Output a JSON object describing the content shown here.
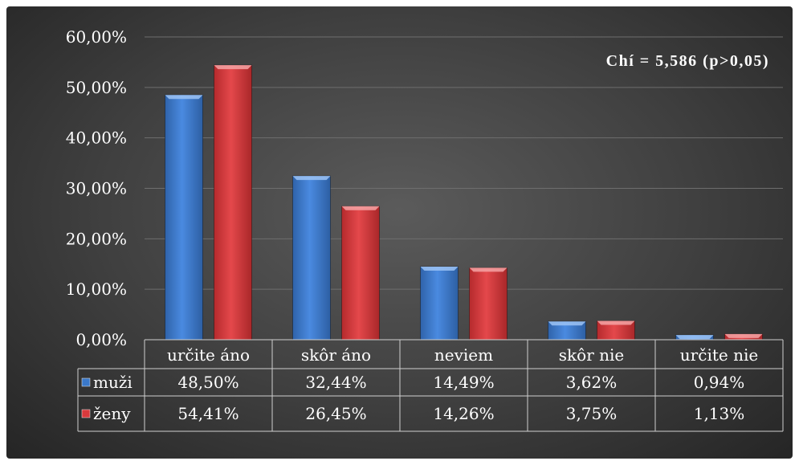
{
  "chart_data": {
    "type": "bar",
    "title": "",
    "xlabel": "",
    "ylabel": "",
    "ylim": [
      0,
      60
    ],
    "y_tick_values": [
      0,
      10,
      20,
      30,
      40,
      50,
      60
    ],
    "y_tick_labels": [
      "0,00%",
      "10,00%",
      "20,00%",
      "30,00%",
      "40,00%",
      "50,00%",
      "60,00%"
    ],
    "categories": [
      "určite áno",
      "skôr áno",
      "neviem",
      "skôr nie",
      "určite nie"
    ],
    "series": [
      {
        "name": "muži",
        "color": "#3a78c9",
        "values": [
          48.5,
          32.44,
          14.49,
          3.62,
          0.94
        ],
        "labels": [
          "48,50%",
          "32,44%",
          "14,49%",
          "3,62%",
          "0,94%"
        ]
      },
      {
        "name": "ženy",
        "color": "#d9393c",
        "values": [
          54.41,
          26.45,
          14.26,
          3.75,
          1.13
        ],
        "labels": [
          "54,41%",
          "26,45%",
          "14,26%",
          "3,75%",
          "1,13%"
        ]
      }
    ],
    "annotation": "Chí = 5,586 (p>0,05)",
    "grid": true,
    "legend": "data-table"
  }
}
